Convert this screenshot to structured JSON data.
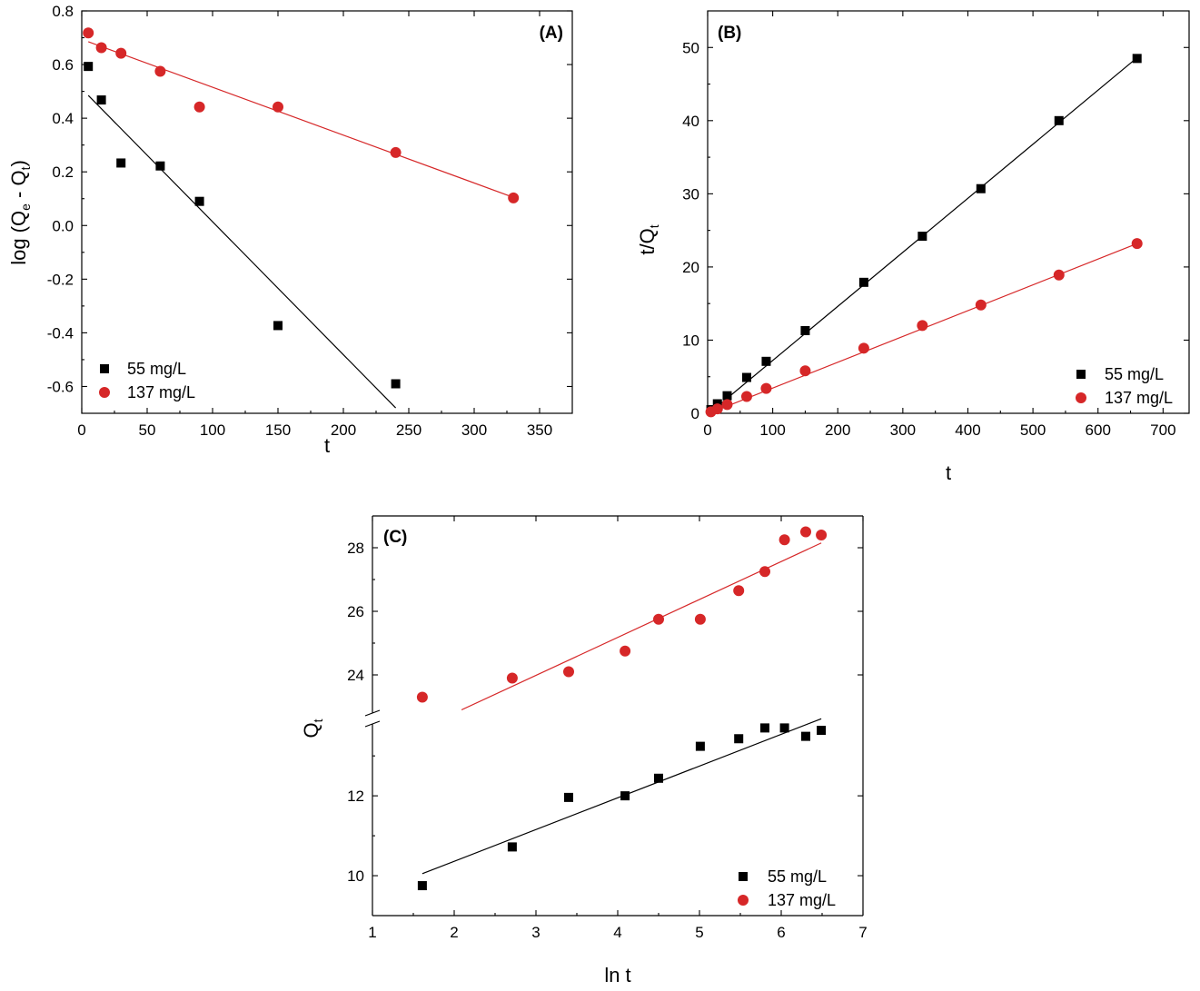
{
  "chart_data": [
    {
      "panel": "(A)",
      "type": "scatter",
      "xlabel": "t",
      "ylabel": "log (Q",
      "ylabel_sub1": "e",
      "ylabel_mid": " - Q",
      "ylabel_sub2": "t",
      "ylabel_end": ")",
      "xlim": [
        0,
        375
      ],
      "ylim": [
        -0.7,
        0.8
      ],
      "xticks": [
        0,
        50,
        100,
        150,
        200,
        250,
        300,
        350
      ],
      "xtick_labels": [
        "0",
        "50",
        "100",
        "150",
        "200",
        "250",
        "300",
        "350"
      ],
      "yticks": [
        -0.6,
        -0.4,
        -0.2,
        0.0,
        0.2,
        0.4,
        0.6,
        0.8
      ],
      "ytick_labels": [
        "-0.6",
        "-0.4",
        "-0.2",
        "0.0",
        "0.2",
        "0.4",
        "0.6",
        "0.8"
      ],
      "legend_position": "bottom-left",
      "series": [
        {
          "name": "55 mg/L",
          "marker": "square",
          "color": "#000000",
          "x": [
            5,
            15,
            30,
            60,
            90,
            150,
            240
          ],
          "y": [
            0.593,
            0.468,
            0.233,
            0.222,
            0.09,
            -0.373,
            -0.59
          ],
          "fit": {
            "x": [
              5,
              240
            ],
            "y": [
              0.485,
              -0.68
            ]
          }
        },
        {
          "name": "137 mg/L",
          "marker": "circle",
          "color": "#d62728",
          "x": [
            5,
            15,
            30,
            60,
            90,
            150,
            240,
            330
          ],
          "y": [
            0.718,
            0.663,
            0.642,
            0.575,
            0.442,
            0.442,
            0.272,
            0.103
          ],
          "fit": {
            "x": [
              5,
              330
            ],
            "y": [
              0.685,
              0.105
            ]
          }
        }
      ]
    },
    {
      "panel": "(B)",
      "type": "scatter",
      "xlabel": "t",
      "ylabel": "t/Q",
      "ylabel_sub": "t",
      "xlim": [
        0,
        740
      ],
      "ylim": [
        0,
        55
      ],
      "xticks": [
        0,
        100,
        200,
        300,
        400,
        500,
        600,
        700
      ],
      "xtick_labels": [
        "0",
        "100",
        "200",
        "300",
        "400",
        "500",
        "600",
        "700"
      ],
      "yticks": [
        0,
        10,
        20,
        30,
        40,
        50
      ],
      "ytick_labels": [
        "0",
        "10",
        "20",
        "30",
        "40",
        "50"
      ],
      "legend_position": "bottom-right",
      "series": [
        {
          "name": "55 mg/L",
          "marker": "square",
          "color": "#000000",
          "x": [
            5,
            15,
            30,
            60,
            90,
            150,
            240,
            330,
            420,
            540,
            660
          ],
          "y": [
            0.5,
            1.3,
            2.4,
            4.9,
            7.1,
            11.3,
            17.9,
            24.2,
            30.7,
            40.0,
            48.5
          ],
          "fit": {
            "x": [
              5,
              660
            ],
            "y": [
              0.2,
              48.6
            ]
          }
        },
        {
          "name": "137 mg/L",
          "marker": "circle",
          "color": "#d62728",
          "x": [
            5,
            15,
            30,
            60,
            90,
            150,
            240,
            330,
            420,
            540,
            660
          ],
          "y": [
            0.2,
            0.6,
            1.2,
            2.3,
            3.4,
            5.8,
            8.9,
            12.0,
            14.8,
            18.9,
            23.2
          ],
          "fit": {
            "x": [
              5,
              660
            ],
            "y": [
              0.1,
              23.2
            ]
          }
        }
      ]
    },
    {
      "panel": "(C)",
      "type": "scatter",
      "xlabel": "ln t",
      "ylabel": "Q",
      "ylabel_sub": "t",
      "xlim": [
        1,
        7
      ],
      "broken_y_axis": true,
      "ylim_lower": [
        9,
        13.8
      ],
      "ylim_upper": [
        22.8,
        29
      ],
      "xticks": [
        1,
        2,
        3,
        4,
        5,
        6,
        7
      ],
      "xtick_labels": [
        "1",
        "2",
        "3",
        "4",
        "5",
        "6",
        "7"
      ],
      "yticks_lower": [
        10,
        12
      ],
      "ytick_labels_lower": [
        "10",
        "12"
      ],
      "yticks_upper": [
        24,
        26,
        28
      ],
      "ytick_labels_upper": [
        "24",
        "26",
        "28"
      ],
      "legend_position": "bottom-right",
      "series": [
        {
          "name": "55 mg/L",
          "marker": "square",
          "color": "#000000",
          "segment": "lower",
          "x": [
            1.61,
            2.71,
            3.4,
            4.09,
            4.5,
            5.01,
            5.48,
            5.8,
            6.04,
            6.3,
            6.49
          ],
          "y": [
            9.75,
            10.72,
            11.96,
            12.0,
            12.44,
            13.24,
            13.43,
            13.7,
            13.7,
            13.49,
            13.64
          ],
          "fit": {
            "x": [
              1.61,
              6.49
            ],
            "y": [
              10.05,
              13.93
            ]
          }
        },
        {
          "name": "137 mg/L",
          "marker": "circle",
          "color": "#d62728",
          "segment": "upper",
          "x": [
            1.61,
            2.71,
            3.4,
            4.09,
            4.5,
            5.01,
            5.48,
            5.8,
            6.04,
            6.3,
            6.49
          ],
          "y": [
            23.3,
            23.9,
            24.1,
            24.75,
            25.75,
            25.75,
            26.65,
            27.25,
            28.25,
            28.5,
            28.4
          ],
          "fit": {
            "x": [
              2.09,
              6.49
            ],
            "y": [
              22.9,
              28.15
            ]
          }
        }
      ]
    }
  ]
}
